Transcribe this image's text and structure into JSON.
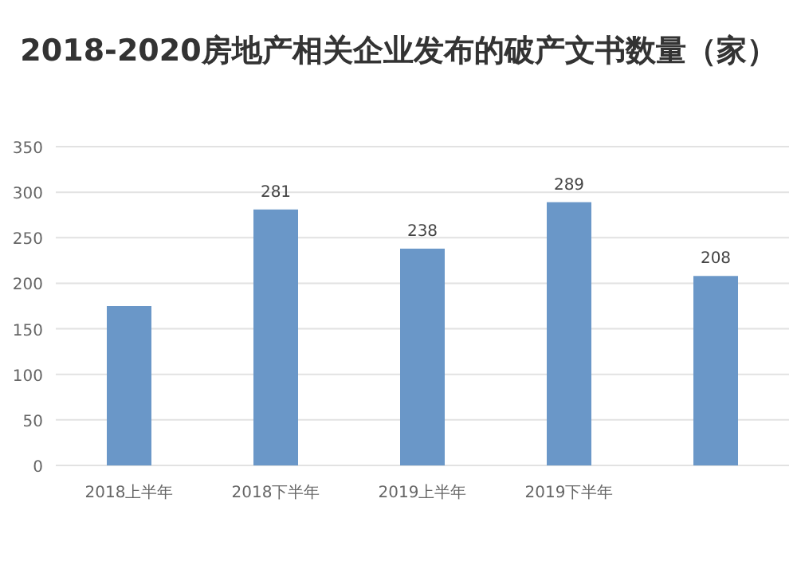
{
  "chart_data": {
    "type": "bar",
    "title": "2018-2020房地产相关企业发布的破产文书数量（家）",
    "categories": [
      "2018上半年",
      "2018下半年",
      "2019上半年",
      "2019下半年",
      null
    ],
    "values": [
      175,
      281,
      238,
      289,
      208
    ],
    "value_labels": [
      null,
      "281",
      "238",
      "289",
      "208"
    ],
    "color": "#6a97c8",
    "ylim": [
      0,
      350
    ],
    "yticks": [
      0,
      50,
      100,
      150,
      200,
      250,
      300,
      350
    ],
    "grid": "y"
  }
}
